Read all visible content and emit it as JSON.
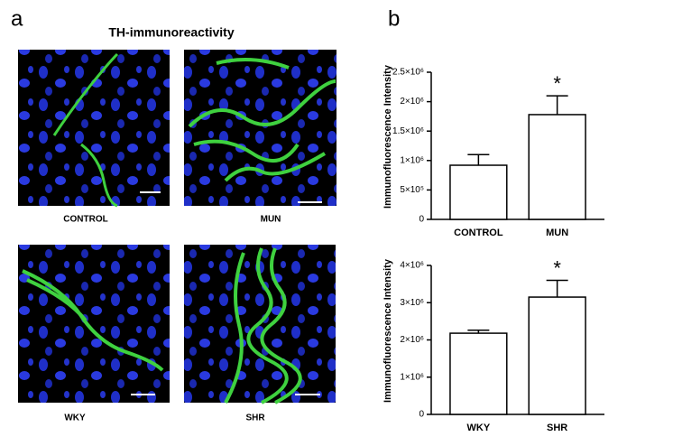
{
  "panel_labels": [
    "a",
    "b"
  ],
  "image_title": "TH-immunoreactivity",
  "images": [
    {
      "label": "CONTROL"
    },
    {
      "label": "MUN"
    },
    {
      "label": "WKY"
    },
    {
      "label": "SHR"
    }
  ],
  "chart_data": [
    {
      "type": "bar",
      "ylabel": "Immunofluorescence Intensity",
      "categories": [
        "CONTROL",
        "MUN"
      ],
      "values": [
        920000,
        1780000
      ],
      "errors": [
        180000,
        320000
      ],
      "color": "#ffffff",
      "edgecolor": "#000000",
      "ylim": [
        0,
        2500000
      ],
      "yticks": [
        0,
        {
          "value": 500000,
          "label": "5×10⁵"
        },
        {
          "value": 1000000,
          "label": "1×10⁶"
        },
        {
          "value": 1500000,
          "label": "1.5×10⁶"
        },
        {
          "value": 2000000,
          "label": "2×10⁶"
        },
        {
          "value": 2500000,
          "label": "2.5×10⁶"
        }
      ],
      "annotations": [
        {
          "text": "*",
          "category": "MUN"
        }
      ]
    },
    {
      "type": "bar",
      "ylabel": "Immunofluorescence Intensity",
      "categories": [
        "WKY",
        "SHR"
      ],
      "values": [
        2180000,
        3150000
      ],
      "errors": [
        80000,
        450000
      ],
      "color": "#ffffff",
      "edgecolor": "#000000",
      "ylim": [
        0,
        4000000
      ],
      "yticks": [
        0,
        {
          "value": 1000000,
          "label": "1×10⁶"
        },
        {
          "value": 2000000,
          "label": "2×10⁶"
        },
        {
          "value": 3000000,
          "label": "3×10⁶"
        },
        {
          "value": 4000000,
          "label": "4×10⁶"
        }
      ],
      "annotations": [
        {
          "text": "*",
          "category": "SHR"
        }
      ]
    }
  ]
}
